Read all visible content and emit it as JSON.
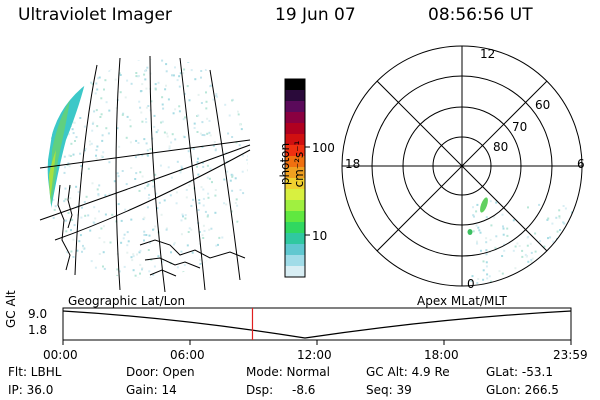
{
  "header": {
    "instrument": "Ultraviolet Imager",
    "date": "19 Jun 07",
    "time": "08:56:56 UT"
  },
  "colorbar": {
    "label": "photon cm⁻²s⁻¹",
    "ticks": [
      "100",
      "10"
    ],
    "colors": [
      "#000000",
      "#2a0a3a",
      "#5a0a5a",
      "#8a0040",
      "#b00020",
      "#d01010",
      "#f03010",
      "#f07010",
      "#f0a020",
      "#f0d030",
      "#d8f040",
      "#a0f040",
      "#60e840",
      "#30d860",
      "#30c8a0",
      "#60c8d0",
      "#a0dce8",
      "#d8eef4"
    ]
  },
  "left_map": {
    "label": "Geographic Lat/Lon"
  },
  "polar_plot": {
    "label": "Apex MLat/MLT",
    "mlt_labels": [
      "12",
      "18",
      "6",
      "0"
    ],
    "lat_labels": [
      "60",
      "70",
      "80"
    ]
  },
  "timeline": {
    "ylabel": "GC Alt",
    "yticks": [
      "9.0",
      "1.8"
    ],
    "xticks": [
      "00:00",
      "06:00",
      "12:00",
      "18:00",
      "23:59"
    ],
    "current_time_fraction": 0.373,
    "current_marker_color": "#e02020"
  },
  "info": {
    "flt": "Flt: LBHL",
    "door": "Door: Open",
    "mode": "Mode: Normal",
    "gcalt": "GC Alt: 4.9 Re",
    "glat": "GLat: -53.1",
    "ip": "IP: 36.0",
    "gain": "Gain: 14",
    "dsp_label": "Dsp:",
    "dsp_value": "-8.6",
    "seq": "Seq: 39",
    "glon": "GLon: 266.5"
  }
}
